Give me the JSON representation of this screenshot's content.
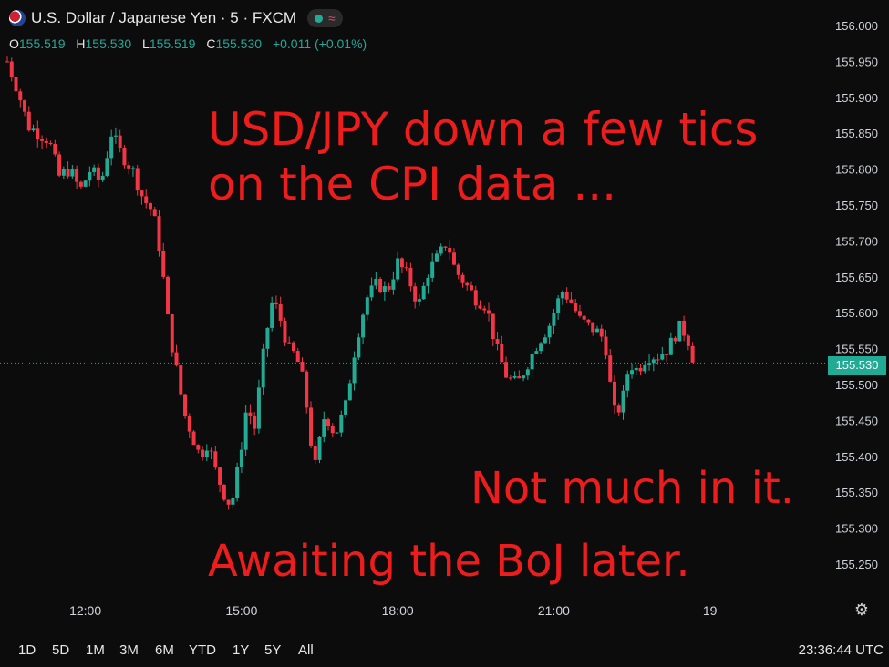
{
  "header": {
    "symbol_title": "U.S. Dollar / Japanese Yen · 5 · FXCM",
    "flag_icon": "usd-jpy-flag-icon",
    "wave_icon": "≈"
  },
  "ohlc": {
    "o_label": "O",
    "o": "155.519",
    "h_label": "H",
    "h": "155.530",
    "l_label": "L",
    "l": "155.519",
    "c_label": "C",
    "c": "155.530",
    "change": "+0.011 (+0.01%)"
  },
  "annotations": {
    "line1": "USD/JPY down a few tics",
    "line2": "on the CPI data ...",
    "line3": "Not much in it.",
    "line4": "Awaiting the BoJ later."
  },
  "last_price": "155.530",
  "timeframes": [
    "1D",
    "5D",
    "1M",
    "3M",
    "6M",
    "YTD",
    "1Y",
    "5Y",
    "All"
  ],
  "clock": "23:36:44 UTC",
  "colors": {
    "up": "#22ab94",
    "down": "#f23645",
    "annotation": "#ee1d1d",
    "background": "#0c0c0c"
  },
  "chart_data": {
    "type": "candlestick",
    "ylim": [
      155.2,
      156.03
    ],
    "y_ticks": [
      "156.000",
      "155.950",
      "155.900",
      "155.850",
      "155.800",
      "155.750",
      "155.700",
      "155.650",
      "155.600",
      "155.550",
      "155.500",
      "155.450",
      "155.400",
      "155.350",
      "155.300",
      "155.250"
    ],
    "y_tick_values": [
      156.0,
      155.95,
      155.9,
      155.85,
      155.8,
      155.75,
      155.7,
      155.65,
      155.6,
      155.55,
      155.5,
      155.45,
      155.4,
      155.35,
      155.3,
      155.25
    ],
    "x_ticks": [
      "12:00",
      "15:00",
      "18:00",
      "21:00",
      "19"
    ],
    "x_tick_hours": [
      12,
      15,
      18,
      21,
      24
    ],
    "x_range_hours": [
      10.5,
      25.25
    ],
    "last_price_line": 155.53,
    "close_path": [
      [
        10.5,
        155.95
      ],
      [
        10.7,
        155.91
      ],
      [
        10.9,
        155.86
      ],
      [
        11.1,
        155.85
      ],
      [
        11.3,
        155.84
      ],
      [
        11.5,
        155.79
      ],
      [
        11.7,
        155.8
      ],
      [
        11.9,
        155.77
      ],
      [
        12.1,
        155.8
      ],
      [
        12.3,
        155.78
      ],
      [
        12.5,
        155.85
      ],
      [
        12.7,
        155.82
      ],
      [
        12.9,
        155.8
      ],
      [
        13.1,
        155.76
      ],
      [
        13.3,
        155.74
      ],
      [
        13.45,
        155.68
      ],
      [
        13.6,
        155.58
      ],
      [
        13.75,
        155.52
      ],
      [
        13.9,
        155.46
      ],
      [
        14.05,
        155.43
      ],
      [
        14.2,
        155.4
      ],
      [
        14.35,
        155.42
      ],
      [
        14.5,
        155.38
      ],
      [
        14.65,
        155.35
      ],
      [
        14.8,
        155.33
      ],
      [
        14.95,
        155.39
      ],
      [
        15.1,
        155.47
      ],
      [
        15.25,
        155.44
      ],
      [
        15.45,
        155.56
      ],
      [
        15.6,
        155.62
      ],
      [
        15.75,
        155.59
      ],
      [
        15.9,
        155.55
      ],
      [
        16.05,
        155.54
      ],
      [
        16.2,
        155.5
      ],
      [
        16.4,
        155.38
      ],
      [
        16.6,
        155.46
      ],
      [
        16.8,
        155.43
      ],
      [
        17.0,
        155.47
      ],
      [
        17.2,
        155.56
      ],
      [
        17.4,
        155.62
      ],
      [
        17.6,
        155.64
      ],
      [
        17.8,
        155.63
      ],
      [
        18.0,
        155.67
      ],
      [
        18.2,
        155.65
      ],
      [
        18.4,
        155.61
      ],
      [
        18.6,
        155.66
      ],
      [
        18.8,
        155.68
      ],
      [
        18.95,
        155.7
      ],
      [
        19.1,
        155.66
      ],
      [
        19.3,
        155.64
      ],
      [
        19.5,
        155.62
      ],
      [
        19.7,
        155.61
      ],
      [
        19.9,
        155.55
      ],
      [
        20.1,
        155.51
      ],
      [
        20.3,
        155.5
      ],
      [
        20.5,
        155.53
      ],
      [
        20.7,
        155.56
      ],
      [
        20.9,
        155.58
      ],
      [
        21.0,
        155.6
      ],
      [
        21.15,
        155.63
      ],
      [
        21.3,
        155.62
      ],
      [
        21.5,
        155.59
      ],
      [
        21.7,
        155.58
      ],
      [
        21.9,
        155.57
      ],
      [
        22.0,
        155.55
      ],
      [
        22.15,
        155.46
      ],
      [
        22.3,
        155.47
      ],
      [
        22.45,
        155.53
      ],
      [
        22.6,
        155.52
      ],
      [
        22.8,
        155.54
      ],
      [
        23.0,
        155.54
      ],
      [
        23.2,
        155.55
      ],
      [
        23.4,
        155.58
      ],
      [
        23.55,
        155.57
      ],
      [
        23.7,
        155.53
      ]
    ]
  }
}
